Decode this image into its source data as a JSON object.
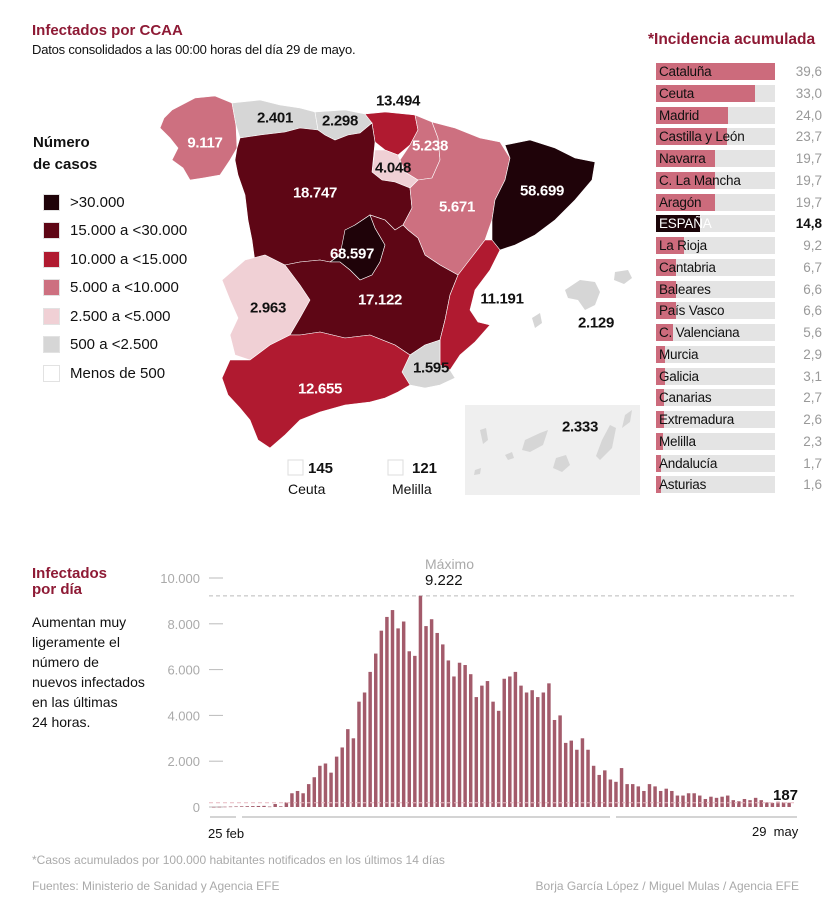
{
  "header": {
    "title": "Infectados por CCAA",
    "subtitle": "Datos consolidados a las 00:00 horas del día 29 de mayo."
  },
  "legend": {
    "title_line1": "Número",
    "title_line2": "de casos",
    "items": [
      {
        "label": ">30.000",
        "color": "#1f0309"
      },
      {
        "label": "15.000 a <30.000",
        "color": "#5e0615"
      },
      {
        "label": "10.000 a <15.000",
        "color": "#b01a30"
      },
      {
        "label": "5.000 a <10.000",
        "color": "#cd7080"
      },
      {
        "label": "2.500 a <5.000",
        "color": "#f0d0d5"
      },
      {
        "label": "500 a <2.500",
        "color": "#d6d6d6"
      },
      {
        "label": "Menos de 500",
        "color": "#ffffff"
      }
    ]
  },
  "map": {
    "regions": [
      {
        "name": "Galicia",
        "value": "9.117",
        "color": "#cd7080",
        "text": "light"
      },
      {
        "name": "Asturias",
        "value": "2.401",
        "color": "#d6d6d6",
        "text": "dark"
      },
      {
        "name": "Cantabria",
        "value": "2.298",
        "color": "#d6d6d6",
        "text": "dark"
      },
      {
        "name": "País Vasco",
        "value": "13.494",
        "color": "#b01a30",
        "text": "dark"
      },
      {
        "name": "Navarra",
        "value": "5.238",
        "color": "#cd7080",
        "text": "light"
      },
      {
        "name": "La Rioja",
        "value": "4.048",
        "color": "#f0d0d5",
        "text": "dark"
      },
      {
        "name": "Castilla y León",
        "value": "18.747",
        "color": "#5e0615",
        "text": "light"
      },
      {
        "name": "Aragón",
        "value": "5.671",
        "color": "#cd7080",
        "text": "light"
      },
      {
        "name": "Cataluña",
        "value": "58.699",
        "color": "#1f0309",
        "text": "light"
      },
      {
        "name": "Madrid",
        "value": "68.597",
        "color": "#1f0309",
        "text": "light"
      },
      {
        "name": "Extremadura",
        "value": "2.963",
        "color": "#f0d0d5",
        "text": "dark"
      },
      {
        "name": "Castilla-La Mancha",
        "value": "17.122",
        "color": "#5e0615",
        "text": "light"
      },
      {
        "name": "C. Valenciana",
        "value": "11.191",
        "color": "#b01a30",
        "text": "dark"
      },
      {
        "name": "Baleares",
        "value": "2.129",
        "color": "#d6d6d6",
        "text": "dark"
      },
      {
        "name": "Murcia",
        "value": "1.595",
        "color": "#d6d6d6",
        "text": "dark"
      },
      {
        "name": "Andalucía",
        "value": "12.655",
        "color": "#b01a30",
        "text": "light"
      },
      {
        "name": "Canarias",
        "value": "2.333",
        "color": "#d6d6d6",
        "text": "dark"
      }
    ],
    "ceuta": {
      "value": "145",
      "label": "Ceuta"
    },
    "melilla": {
      "value": "121",
      "label": "Melilla"
    }
  },
  "incidence": {
    "title": "*Incidencia acumulada",
    "max": 39.6,
    "rows": [
      {
        "name": "Cataluña",
        "value": 39.6,
        "label": "39,6"
      },
      {
        "name": "Ceuta",
        "value": 33.0,
        "label": "33,0"
      },
      {
        "name": "Madrid",
        "value": 24.0,
        "label": "24,0"
      },
      {
        "name": "Castilla y León",
        "value": 23.7,
        "label": "23,7"
      },
      {
        "name": "Navarra",
        "value": 19.7,
        "label": "19,7"
      },
      {
        "name": "C. La Mancha",
        "value": 19.7,
        "label": "19,7"
      },
      {
        "name": "Aragón",
        "value": 19.7,
        "label": "19,7"
      },
      {
        "name": "ESPAÑA",
        "value": 14.8,
        "label": "14,8",
        "highlight": true
      },
      {
        "name": "La Rioja",
        "value": 9.2,
        "label": "9,2"
      },
      {
        "name": "Cantabria",
        "value": 6.7,
        "label": "6,7"
      },
      {
        "name": "Baleares",
        "value": 6.6,
        "label": "6,6"
      },
      {
        "name": "País Vasco",
        "value": 6.6,
        "label": "6,6"
      },
      {
        "name": "C. Valenciana",
        "value": 5.6,
        "label": "5,6"
      },
      {
        "name": "Murcia",
        "value": 2.9,
        "label": "2,9"
      },
      {
        "name": "Galicia",
        "value": 3.1,
        "label": "3,1"
      },
      {
        "name": "Canarias",
        "value": 2.7,
        "label": "2,7"
      },
      {
        "name": "Extremadura",
        "value": 2.6,
        "label": "2,6"
      },
      {
        "name": "Melilla",
        "value": 2.3,
        "label": "2,3"
      },
      {
        "name": "Andalucía",
        "value": 1.7,
        "label": "1,7"
      },
      {
        "name": "Asturias",
        "value": 1.6,
        "label": "1,6"
      }
    ]
  },
  "daily": {
    "title_line1": "Infectados",
    "title_line2": "por día",
    "description": [
      "Aumentan muy",
      "ligeramente el",
      "número de",
      "nuevos infectados",
      "en las últimas",
      "24 horas."
    ],
    "max_label": "Máximo",
    "max_value_label": "9.222",
    "last_value_label": "187",
    "x_start_label": "25 feb",
    "x_end_label": "29  may"
  },
  "chart_data": {
    "type": "bar",
    "title": "Infectados por día",
    "xlabel": "",
    "ylabel": "",
    "ylim": [
      0,
      10000
    ],
    "yticks": [
      0,
      2000,
      4000,
      6000,
      8000,
      10000
    ],
    "ytick_labels": [
      "0",
      "2.000",
      "4.000",
      "6.000",
      "8.000",
      "10.000"
    ],
    "x_start": "25 feb",
    "x_end": "29 may",
    "annotations": [
      {
        "label": "Máximo",
        "value": 9222
      },
      {
        "label": "last",
        "value": 187
      }
    ],
    "values": [
      5,
      10,
      15,
      20,
      25,
      30,
      35,
      40,
      45,
      50,
      20,
      130,
      30,
      200,
      600,
      700,
      600,
      1000,
      1300,
      1800,
      1900,
      1500,
      2200,
      2600,
      3400,
      3000,
      4600,
      5000,
      5900,
      6700,
      7700,
      8300,
      8600,
      7800,
      8100,
      6800,
      6600,
      9222,
      7900,
      8200,
      7600,
      7100,
      6400,
      5700,
      6300,
      6200,
      5800,
      4800,
      5300,
      5500,
      4600,
      4200,
      5600,
      5700,
      5900,
      5300,
      5000,
      5100,
      4800,
      5000,
      5400,
      3800,
      4000,
      2800,
      2900,
      2500,
      3000,
      2500,
      1800,
      1400,
      1600,
      1200,
      1100,
      1700,
      1000,
      1000,
      900,
      700,
      1000,
      900,
      700,
      800,
      700,
      500,
      500,
      600,
      600,
      500,
      350,
      450,
      400,
      450,
      500,
      300,
      250,
      350,
      300,
      400,
      300,
      200,
      180,
      230,
      200,
      187
    ]
  },
  "footer": {
    "note": "*Casos acumulados por 100.000 habitantes notificados en los últimos 14 días",
    "sources": "Fuentes: Ministerio de Sanidad y Agencia EFE",
    "credits": "Borja García López / Miguel Mulas / Agencia EFE"
  }
}
